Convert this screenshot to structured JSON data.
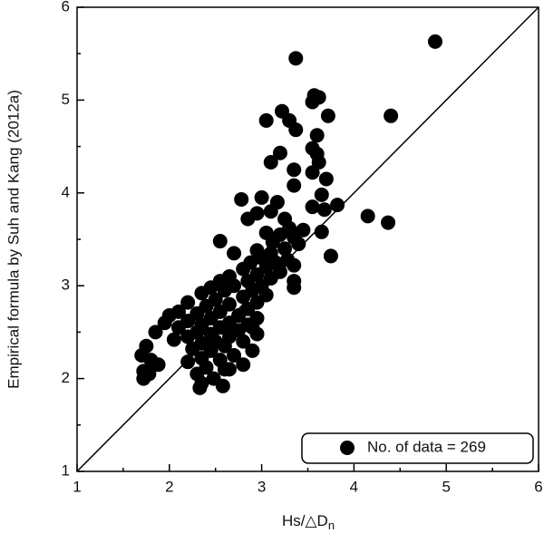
{
  "chart_data": {
    "type": "scatter",
    "ylabel": "Empirical formula by Suh and Kang (2012a)",
    "xlabel": "Hs/△D",
    "xlabel_sub": "n",
    "legend_label": "No. of data = 269",
    "legend": "lower right",
    "color": "#000000",
    "xlim": [
      1,
      6
    ],
    "ylim": [
      1,
      6
    ],
    "xticks": [
      1,
      2,
      3,
      4,
      5,
      6
    ],
    "yticks": [
      1,
      2,
      3,
      4,
      5,
      6
    ],
    "xminor": [
      1.5,
      2.5,
      3.5,
      4.5,
      5.5
    ],
    "yminor": [
      1.5,
      2.5,
      3.5,
      4.5,
      5.5
    ],
    "diagonal": {
      "x": [
        1,
        6
      ],
      "y": [
        1,
        6
      ]
    },
    "x": [
      4.88,
      3.37,
      3.57,
      3.62,
      3.55,
      3.22,
      3.3,
      3.05,
      3.72,
      4.4,
      3.37,
      3.6,
      3.55,
      3.6,
      3.2,
      3.1,
      3.62,
      3.55,
      3.35,
      3.7,
      3.35,
      3.65,
      3.0,
      2.78,
      3.17,
      3.55,
      3.82,
      3.68,
      3.1,
      2.95,
      2.85,
      3.25,
      4.15,
      4.37,
      3.3,
      3.45,
      3.65,
      3.05,
      3.2,
      3.35,
      3.12,
      2.55,
      3.4,
      3.25,
      2.95,
      2.7,
      3.75,
      3.0,
      3.28,
      3.15,
      2.88,
      3.35,
      3.05,
      2.8,
      3.2,
      2.95,
      2.65,
      3.1,
      2.85,
      3.35,
      2.55,
      3.0,
      2.7,
      2.45,
      3.35,
      2.9,
      2.6,
      2.35,
      3.05,
      2.8,
      2.5,
      2.2,
      2.95,
      2.65,
      2.4,
      2.85,
      2.1,
      2.55,
      2.3,
      2.75,
      2.0,
      2.95,
      2.45,
      2.2,
      2.65,
      1.95,
      2.35,
      2.85,
      2.55,
      2.1,
      2.75,
      2.3,
      1.85,
      2.45,
      2.95,
      2.65,
      2.2,
      2.05,
      2.5,
      2.8,
      2.35,
      1.75,
      2.6,
      2.25,
      2.9,
      2.45,
      1.7,
      2.7,
      2.35,
      1.8,
      2.55,
      2.2,
      2.8,
      1.88,
      2.4,
      1.72,
      2.6,
      2.3,
      1.78,
      2.48,
      1.72,
      2.35,
      2.58,
      2.33,
      2.65,
      2.9,
      3.1
    ],
    "y": [
      5.63,
      5.45,
      5.05,
      5.03,
      4.98,
      4.88,
      4.78,
      4.78,
      4.83,
      4.83,
      4.68,
      4.62,
      4.48,
      4.42,
      4.43,
      4.33,
      4.33,
      4.22,
      4.25,
      4.15,
      4.08,
      3.98,
      3.95,
      3.93,
      3.9,
      3.85,
      3.87,
      3.82,
      3.8,
      3.78,
      3.72,
      3.72,
      3.75,
      3.68,
      3.62,
      3.6,
      3.58,
      3.57,
      3.55,
      3.52,
      3.47,
      3.48,
      3.45,
      3.4,
      3.38,
      3.35,
      3.32,
      3.3,
      3.28,
      3.25,
      3.25,
      3.22,
      3.2,
      3.18,
      3.15,
      3.12,
      3.1,
      3.08,
      3.05,
      3.05,
      3.05,
      3.0,
      3.0,
      2.98,
      2.98,
      2.95,
      2.95,
      2.92,
      2.9,
      2.88,
      2.85,
      2.82,
      2.82,
      2.8,
      2.78,
      2.75,
      2.72,
      2.72,
      2.7,
      2.68,
      2.68,
      2.65,
      2.65,
      2.62,
      2.6,
      2.6,
      2.58,
      2.58,
      2.55,
      2.55,
      2.52,
      2.5,
      2.5,
      2.48,
      2.48,
      2.45,
      2.45,
      2.42,
      2.4,
      2.4,
      2.38,
      2.35,
      2.35,
      2.32,
      2.3,
      2.3,
      2.25,
      2.25,
      2.22,
      2.2,
      2.2,
      2.18,
      2.15,
      2.15,
      2.12,
      2.08,
      2.1,
      2.05,
      2.05,
      2.0,
      2.0,
      1.95,
      1.92,
      1.9,
      2.1,
      2.55,
      3.35
    ]
  }
}
